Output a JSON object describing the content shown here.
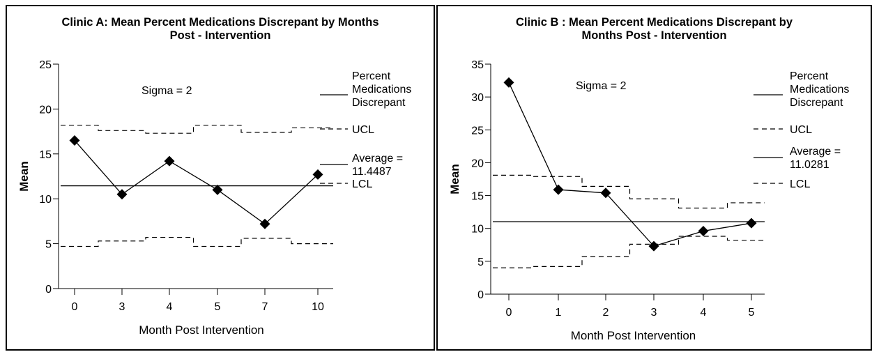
{
  "chart_data": [
    {
      "type": "line",
      "title": "Clinic A: Mean Percent Medications Discrepant by Months Post - Intervention",
      "title_lines": [
        "Clinic A: Mean Percent Medications Discrepant by Months",
        "Post - Intervention"
      ],
      "xlabel": "Month Post Intervention",
      "ylabel": "Mean",
      "categories": [
        "0",
        "3",
        "4",
        "5",
        "7",
        "10"
      ],
      "ylim": [
        0,
        25
      ],
      "yticks": [
        0,
        5,
        10,
        15,
        20,
        25
      ],
      "annotation": "Sigma = 2",
      "series": [
        {
          "name": "Percent Medications Discrepant",
          "values": [
            16.5,
            10.5,
            14.2,
            11.0,
            7.2,
            12.7
          ]
        },
        {
          "name": "UCL",
          "values": [
            18.2,
            17.6,
            17.3,
            18.2,
            17.4,
            17.9
          ]
        },
        {
          "name": "Average = 11.4487",
          "values": [
            11.4487,
            11.4487,
            11.4487,
            11.4487,
            11.4487,
            11.4487
          ]
        },
        {
          "name": "LCL",
          "values": [
            4.7,
            5.3,
            5.7,
            4.7,
            5.6,
            5.0
          ]
        }
      ],
      "legend": [
        {
          "lines": [
            "Percent",
            "Medications",
            "Discrepant"
          ],
          "style": "solid"
        },
        {
          "lines": [
            "UCL"
          ],
          "style": "dashed"
        },
        {
          "lines": [
            "Average =",
            "11.4487"
          ],
          "style": "solid"
        },
        {
          "lines": [
            "LCL"
          ],
          "style": "dashed"
        }
      ],
      "legend_position": "right"
    },
    {
      "type": "line",
      "title": "Clinic B : Mean Percent Medications Discrepant by Months Post - Intervention",
      "title_lines": [
        "Clinic B : Mean Percent Medications Discrepant by",
        "Months Post - Intervention"
      ],
      "xlabel": "Month Post Intervention",
      "ylabel": "Mean",
      "categories": [
        "0",
        "1",
        "2",
        "3",
        "4",
        "5"
      ],
      "ylim": [
        0,
        35
      ],
      "yticks": [
        0,
        5,
        10,
        15,
        20,
        25,
        30,
        35
      ],
      "annotation": "Sigma = 2",
      "series": [
        {
          "name": "Percent Medications Discrepant",
          "values": [
            32.2,
            15.9,
            15.4,
            7.3,
            9.6,
            10.8
          ]
        },
        {
          "name": "UCL",
          "values": [
            18.1,
            17.9,
            16.4,
            14.5,
            13.1,
            13.9
          ]
        },
        {
          "name": "Average = 11.0281",
          "values": [
            11.0281,
            11.0281,
            11.0281,
            11.0281,
            11.0281,
            11.0281
          ]
        },
        {
          "name": "LCL",
          "values": [
            4.0,
            4.2,
            5.7,
            7.6,
            8.8,
            8.2
          ]
        }
      ],
      "legend": [
        {
          "lines": [
            "Percent",
            "Medications",
            "Discrepant"
          ],
          "style": "solid"
        },
        {
          "lines": [
            "UCL"
          ],
          "style": "dashed"
        },
        {
          "lines": [
            "Average =",
            "11.0281"
          ],
          "style": "solid"
        },
        {
          "lines": [
            "LCL"
          ],
          "style": "dashed"
        }
      ],
      "legend_position": "right"
    }
  ]
}
